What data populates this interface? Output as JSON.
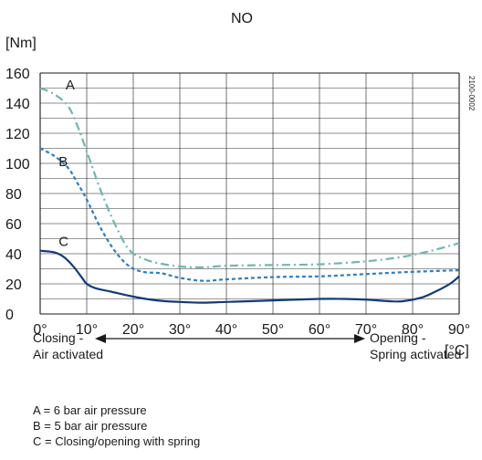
{
  "chart_data": {
    "type": "line",
    "title": "NO",
    "ylabel": "[Nm]",
    "xlabel": "[°C]",
    "figure_id": "2100-0002",
    "xlim": [
      0,
      90
    ],
    "ylim": [
      0,
      160
    ],
    "x_ticks": [
      0,
      10,
      20,
      30,
      40,
      50,
      60,
      70,
      80,
      90
    ],
    "x_tick_labels": [
      "0°",
      "10°",
      "20°",
      "30°",
      "40°",
      "50°",
      "60°",
      "70°",
      "80°",
      "90°"
    ],
    "y_ticks": [
      0,
      20,
      40,
      60,
      80,
      100,
      120,
      140,
      160
    ],
    "y_tick_labels": [
      "0",
      "20",
      "40",
      "60",
      "80",
      "100",
      "120",
      "140",
      "160"
    ],
    "grid": true,
    "series": [
      {
        "name": "A",
        "color": "#6fb7b0",
        "dash": "dash-dot",
        "x": [
          0,
          3,
          6,
          8,
          10,
          13,
          16,
          19,
          22,
          25,
          30,
          35,
          40,
          50,
          60,
          70,
          78,
          84,
          90
        ],
        "y": [
          150,
          146,
          138,
          125,
          108,
          82,
          60,
          43,
          37,
          34,
          31.5,
          31,
          32,
          32.5,
          33,
          35,
          38,
          42,
          47
        ]
      },
      {
        "name": "B",
        "color": "#2f7dbf",
        "dash": "dashed",
        "x": [
          0,
          3,
          6,
          8,
          10,
          13,
          16,
          19,
          22,
          26,
          30,
          35,
          40,
          50,
          60,
          70,
          80,
          90
        ],
        "y": [
          110,
          105,
          97,
          87,
          76,
          57,
          42,
          32,
          28,
          27,
          24,
          22,
          23,
          24.5,
          25,
          26.5,
          28,
          29
        ]
      },
      {
        "name": "C",
        "color": "#103a78",
        "dash": "solid",
        "x": [
          0,
          3,
          5,
          7,
          9,
          10,
          12,
          15,
          20,
          25,
          30,
          35,
          40,
          50,
          60,
          65,
          70,
          75,
          78,
          82,
          85,
          88,
          90
        ],
        "y": [
          42,
          41,
          38,
          32,
          24,
          20,
          17,
          15,
          11.5,
          9,
          8,
          7.5,
          8,
          9,
          10,
          10,
          9.5,
          8.5,
          8.5,
          11,
          15,
          20,
          25
        ]
      }
    ],
    "annotations": {
      "left_label": [
        "Closing -",
        "Air activated"
      ],
      "right_label": [
        "Opening -",
        "Spring activated"
      ]
    }
  },
  "legend": [
    "A = 6 bar air pressure",
    "B = 5 bar air pressure",
    "C = Closing/opening with spring"
  ]
}
